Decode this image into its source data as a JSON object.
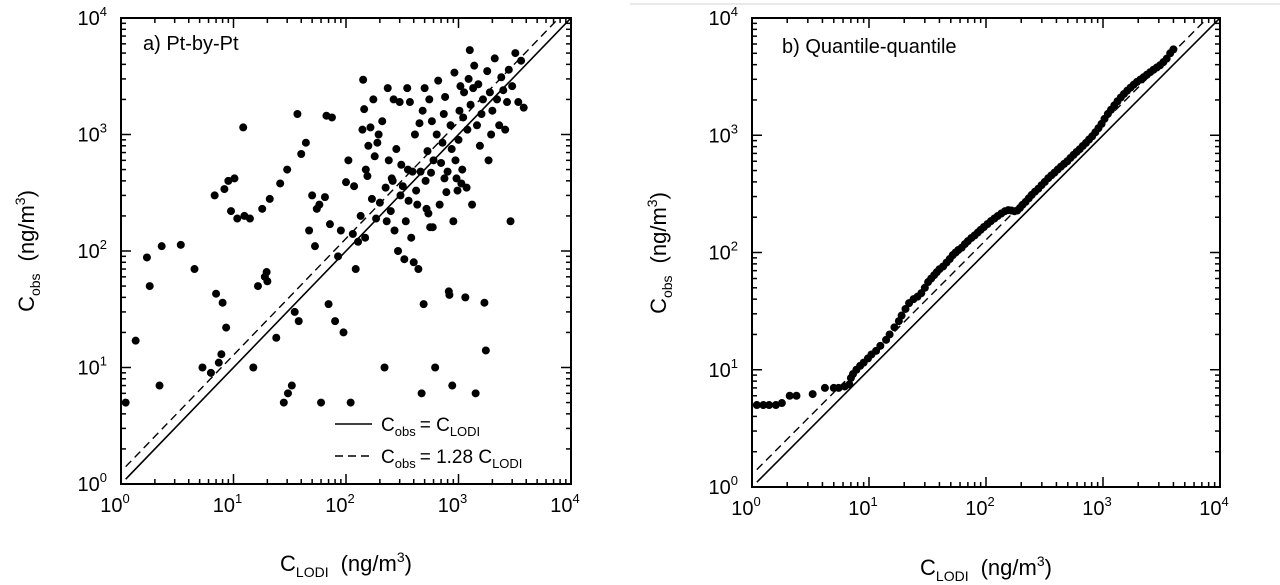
{
  "chart_data": [
    {
      "type": "scatter",
      "panel_label": "a) Pt-by-Pt",
      "xlabel": {
        "main": "C",
        "sub": "LODI",
        "unit": "(ng/m",
        "unit_sup": "3",
        "unit_end": ")"
      },
      "ylabel": {
        "main": "C",
        "sub": "obs",
        "unit": "(ng/m",
        "unit_sup": "3",
        "unit_end": ")"
      },
      "xscale": "log",
      "yscale": "log",
      "xlim": [
        1,
        10000
      ],
      "ylim": [
        1,
        10000
      ],
      "tick_labels": [
        {
          "base": "10",
          "exp": "0",
          "value": 1
        },
        {
          "base": "10",
          "exp": "1",
          "value": 10
        },
        {
          "base": "10",
          "exp": "2",
          "value": 100
        },
        {
          "base": "10",
          "exp": "3",
          "value": 1000
        },
        {
          "base": "10",
          "exp": "4",
          "value": 10000
        }
      ],
      "legend": {
        "placement": "bottom-right",
        "entries": [
          {
            "style": "solid",
            "lhs": "C",
            "lhs_sub": "obs",
            "rhs": "= C",
            "rhs_sub": "LODI",
            "coef": 1
          },
          {
            "style": "dashed",
            "lhs": "C",
            "lhs_sub": "obs",
            "rhs": "= 1.28 C",
            "rhs_sub": "LODI",
            "coef": 1.28
          }
        ]
      },
      "points": [
        [
          1.1,
          5
        ],
        [
          1.35,
          17
        ],
        [
          1.7,
          88
        ],
        [
          1.8,
          50
        ],
        [
          2.2,
          7
        ],
        [
          2.3,
          110
        ],
        [
          3.4,
          113
        ],
        [
          4.5,
          70
        ],
        [
          5.3,
          10
        ],
        [
          6.3,
          9
        ],
        [
          6.8,
          300
        ],
        [
          7,
          43
        ],
        [
          7.4,
          11
        ],
        [
          7.8,
          13
        ],
        [
          8,
          36
        ],
        [
          8.3,
          340
        ],
        [
          8.6,
          22
        ],
        [
          9,
          400
        ],
        [
          9.5,
          220
        ],
        [
          10.2,
          420
        ],
        [
          10.8,
          190
        ],
        [
          12.2,
          1150
        ],
        [
          12.5,
          200
        ],
        [
          14,
          190
        ],
        [
          15,
          10
        ],
        [
          16.5,
          50
        ],
        [
          18,
          230
        ],
        [
          19,
          60
        ],
        [
          19.7,
          66
        ],
        [
          20,
          55
        ],
        [
          21,
          280
        ],
        [
          24,
          18
        ],
        [
          26,
          380
        ],
        [
          28,
          5
        ],
        [
          30,
          500
        ],
        [
          30.5,
          6
        ],
        [
          33,
          7
        ],
        [
          35,
          30
        ],
        [
          37,
          1500
        ],
        [
          38,
          25
        ],
        [
          40,
          680
        ],
        [
          44,
          850
        ],
        [
          47,
          150
        ],
        [
          50,
          300
        ],
        [
          53,
          110
        ],
        [
          55,
          230
        ],
        [
          58,
          250
        ],
        [
          60,
          5
        ],
        [
          65,
          290
        ],
        [
          67,
          1450
        ],
        [
          70,
          35
        ],
        [
          72,
          170
        ],
        [
          75,
          1400
        ],
        [
          80,
          25
        ],
        [
          85,
          90
        ],
        [
          90,
          150
        ],
        [
          95,
          20
        ],
        [
          100,
          390
        ],
        [
          105,
          600
        ],
        [
          110,
          5
        ],
        [
          115,
          140
        ],
        [
          118,
          360
        ],
        [
          122,
          70
        ],
        [
          128,
          120
        ],
        [
          135,
          200
        ],
        [
          140,
          1100
        ],
        [
          142,
          2950
        ],
        [
          145,
          1650
        ],
        [
          148,
          130
        ],
        [
          150,
          500
        ],
        [
          155,
          440
        ],
        [
          158,
          800
        ],
        [
          165,
          1150
        ],
        [
          170,
          280
        ],
        [
          175,
          2000
        ],
        [
          180,
          650
        ],
        [
          185,
          190
        ],
        [
          190,
          850
        ],
        [
          195,
          1000
        ],
        [
          200,
          260
        ],
        [
          210,
          1300
        ],
        [
          220,
          10
        ],
        [
          225,
          350
        ],
        [
          230,
          180
        ],
        [
          235,
          2500
        ],
        [
          240,
          600
        ],
        [
          250,
          220
        ],
        [
          255,
          420
        ],
        [
          260,
          400
        ],
        [
          265,
          2000
        ],
        [
          270,
          150
        ],
        [
          280,
          750
        ],
        [
          290,
          100
        ],
        [
          300,
          1900
        ],
        [
          305,
          300
        ],
        [
          310,
          550
        ],
        [
          320,
          360
        ],
        [
          330,
          85
        ],
        [
          340,
          180
        ],
        [
          350,
          2500
        ],
        [
          355,
          500
        ],
        [
          360,
          270
        ],
        [
          370,
          1900
        ],
        [
          380,
          130
        ],
        [
          390,
          480
        ],
        [
          400,
          80
        ],
        [
          410,
          1000
        ],
        [
          420,
          330
        ],
        [
          430,
          250
        ],
        [
          440,
          70
        ],
        [
          450,
          1250
        ],
        [
          460,
          480
        ],
        [
          470,
          6
        ],
        [
          480,
          1600
        ],
        [
          490,
          35
        ],
        [
          500,
          2500
        ],
        [
          510,
          400
        ],
        [
          520,
          230
        ],
        [
          530,
          720
        ],
        [
          540,
          210
        ],
        [
          550,
          2000
        ],
        [
          560,
          160
        ],
        [
          570,
          470
        ],
        [
          580,
          1300
        ],
        [
          590,
          160
        ],
        [
          600,
          600
        ],
        [
          620,
          10
        ],
        [
          640,
          1000
        ],
        [
          660,
          2900
        ],
        [
          680,
          250
        ],
        [
          700,
          570
        ],
        [
          720,
          850
        ],
        [
          740,
          1500
        ],
        [
          750,
          420
        ],
        [
          760,
          2100
        ],
        [
          780,
          320
        ],
        [
          800,
          480
        ],
        [
          820,
          45
        ],
        [
          830,
          42
        ],
        [
          850,
          1200
        ],
        [
          870,
          750
        ],
        [
          880,
          7
        ],
        [
          900,
          180
        ],
        [
          920,
          3400
        ],
        [
          940,
          600
        ],
        [
          960,
          420
        ],
        [
          980,
          330
        ],
        [
          1000,
          900
        ],
        [
          1020,
          1600
        ],
        [
          1040,
          2600
        ],
        [
          1060,
          380
        ],
        [
          1080,
          500
        ],
        [
          1100,
          1400
        ],
        [
          1120,
          2300
        ],
        [
          1150,
          40
        ],
        [
          1180,
          350
        ],
        [
          1200,
          1100
        ],
        [
          1230,
          3000
        ],
        [
          1260,
          5300
        ],
        [
          1280,
          1800
        ],
        [
          1320,
          250
        ],
        [
          1350,
          2500
        ],
        [
          1380,
          3900
        ],
        [
          1420,
          6
        ],
        [
          1460,
          1200
        ],
        [
          1500,
          2700
        ],
        [
          1550,
          800
        ],
        [
          1600,
          1500
        ],
        [
          1650,
          2000
        ],
        [
          1700,
          36
        ],
        [
          1750,
          14
        ],
        [
          1800,
          3500
        ],
        [
          1850,
          600
        ],
        [
          1900,
          2300
        ],
        [
          1950,
          1000
        ],
        [
          2000,
          1600
        ],
        [
          2100,
          4500
        ],
        [
          2200,
          2000
        ],
        [
          2300,
          1200
        ],
        [
          2400,
          3100
        ],
        [
          2500,
          2400
        ],
        [
          2600,
          1100
        ],
        [
          2700,
          1900
        ],
        [
          2800,
          3600
        ],
        [
          2900,
          180
        ],
        [
          3000,
          2600
        ],
        [
          3200,
          5000
        ],
        [
          3400,
          1900
        ],
        [
          3600,
          4300
        ],
        [
          3800,
          1700
        ]
      ]
    },
    {
      "type": "scatter",
      "panel_label": "b) Quantile-quantile",
      "xlabel": {
        "main": "C",
        "sub": "LODI",
        "unit": "(ng/m",
        "unit_sup": "3",
        "unit_end": ")"
      },
      "ylabel": {
        "main": "C",
        "sub": "obs",
        "unit": "(ng/m",
        "unit_sup": "3",
        "unit_end": ")"
      },
      "xscale": "log",
      "yscale": "log",
      "xlim": [
        1,
        10000
      ],
      "ylim": [
        1,
        10000
      ],
      "tick_labels": [
        {
          "base": "10",
          "exp": "0",
          "value": 1
        },
        {
          "base": "10",
          "exp": "1",
          "value": 10
        },
        {
          "base": "10",
          "exp": "2",
          "value": 100
        },
        {
          "base": "10",
          "exp": "3",
          "value": 1000
        },
        {
          "base": "10",
          "exp": "4",
          "value": 10000
        }
      ],
      "reference_lines": [
        {
          "style": "solid",
          "coef": 1
        },
        {
          "style": "dashed",
          "coef": 1.28
        }
      ],
      "points": [
        [
          1.1,
          5
        ],
        [
          1.25,
          5
        ],
        [
          1.4,
          5
        ],
        [
          1.6,
          5
        ],
        [
          1.8,
          5.2
        ],
        [
          2.1,
          6
        ],
        [
          2.4,
          6
        ],
        [
          3.3,
          6.2
        ],
        [
          4.2,
          7
        ],
        [
          5,
          7
        ],
        [
          5.5,
          7
        ],
        [
          6.2,
          7.2
        ],
        [
          6.8,
          7.5
        ],
        [
          7,
          8.5
        ],
        [
          7.3,
          9.2
        ],
        [
          7.8,
          10
        ],
        [
          8.4,
          10.8
        ],
        [
          9,
          11.5
        ],
        [
          9.8,
          12.5
        ],
        [
          10.5,
          13.5
        ],
        [
          11.5,
          14.5
        ],
        [
          12.5,
          16
        ],
        [
          14,
          18
        ],
        [
          15,
          20
        ],
        [
          16.5,
          23
        ],
        [
          18,
          26
        ],
        [
          19,
          29
        ],
        [
          20.5,
          33
        ],
        [
          22,
          37
        ],
        [
          24,
          40
        ],
        [
          26,
          42
        ],
        [
          28,
          45
        ],
        [
          30,
          50
        ],
        [
          32,
          56
        ],
        [
          34,
          60
        ],
        [
          36,
          64
        ],
        [
          38,
          68
        ],
        [
          40,
          72
        ],
        [
          43,
          76
        ],
        [
          46,
          82
        ],
        [
          49,
          88
        ],
        [
          52,
          95
        ],
        [
          55,
          100
        ],
        [
          58,
          105
        ],
        [
          62,
          110
        ],
        [
          66,
          118
        ],
        [
          70,
          125
        ],
        [
          75,
          133
        ],
        [
          80,
          140
        ],
        [
          85,
          148
        ],
        [
          90,
          156
        ],
        [
          96,
          165
        ],
        [
          103,
          175
        ],
        [
          110,
          185
        ],
        [
          118,
          195
        ],
        [
          126,
          205
        ],
        [
          135,
          215
        ],
        [
          145,
          225
        ],
        [
          155,
          230
        ],
        [
          165,
          228
        ],
        [
          175,
          225
        ],
        [
          185,
          228
        ],
        [
          195,
          240
        ],
        [
          205,
          255
        ],
        [
          218,
          270
        ],
        [
          232,
          290
        ],
        [
          246,
          310
        ],
        [
          262,
          330
        ],
        [
          280,
          350
        ],
        [
          298,
          375
        ],
        [
          318,
          400
        ],
        [
          340,
          430
        ],
        [
          362,
          455
        ],
        [
          385,
          480
        ],
        [
          410,
          510
        ],
        [
          437,
          540
        ],
        [
          465,
          570
        ],
        [
          495,
          600
        ],
        [
          527,
          640
        ],
        [
          560,
          680
        ],
        [
          595,
          720
        ],
        [
          632,
          760
        ],
        [
          672,
          810
        ],
        [
          715,
          860
        ],
        [
          760,
          920
        ],
        [
          808,
          980
        ],
        [
          860,
          1060
        ],
        [
          915,
          1150
        ],
        [
          972,
          1250
        ],
        [
          1030,
          1380
        ],
        [
          1100,
          1520
        ],
        [
          1170,
          1650
        ],
        [
          1250,
          1800
        ],
        [
          1330,
          1950
        ],
        [
          1420,
          2100
        ],
        [
          1510,
          2250
        ],
        [
          1610,
          2400
        ],
        [
          1720,
          2550
        ],
        [
          1830,
          2700
        ],
        [
          1950,
          2850
        ],
        [
          2080,
          2980
        ],
        [
          2220,
          3120
        ],
        [
          2370,
          3280
        ],
        [
          2530,
          3450
        ],
        [
          2700,
          3620
        ],
        [
          2880,
          3780
        ],
        [
          3070,
          3950
        ],
        [
          3280,
          4200
        ],
        [
          3500,
          4500
        ],
        [
          3750,
          5000
        ],
        [
          4000,
          5400
        ]
      ]
    }
  ]
}
